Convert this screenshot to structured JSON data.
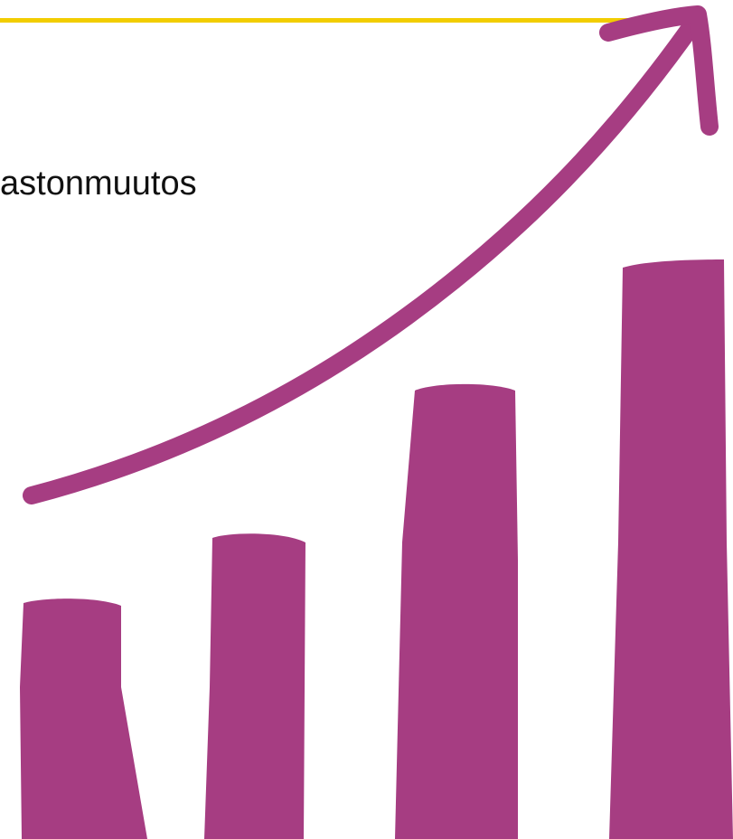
{
  "slide": {
    "title": "astonmuutos",
    "accent_color": "#f2cd00",
    "graphic_color": "#a63d82"
  },
  "graphic": {
    "icon": "growth-chart-arrow-icon",
    "bar_count": 4
  }
}
